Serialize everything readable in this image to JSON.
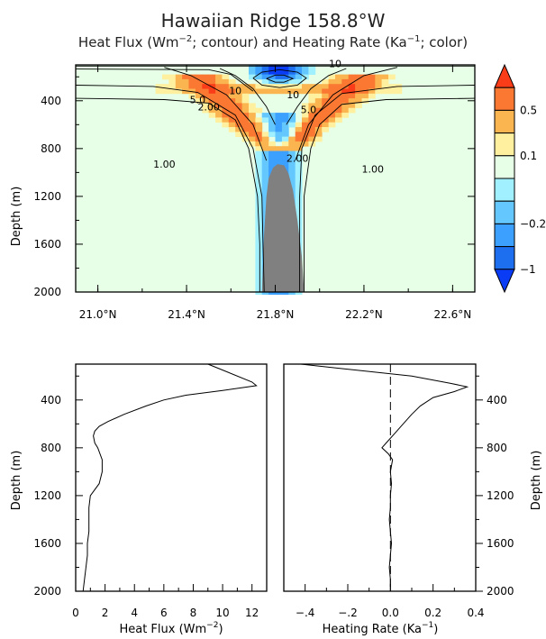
{
  "title": "Hawaiian Ridge 158.8°W",
  "subtitle": {
    "part1": "Heat Flux (Wm",
    "sup1": "−2",
    "part2": "; contour) and Heating Rate (Ka",
    "sup2": "−1",
    "part3": "; color)"
  },
  "chart_data": [
    {
      "type": "heatmap",
      "xlabel": "",
      "ylabel": "Depth (m)",
      "x_ticks": [
        "21.0°N",
        "21.4°N",
        "21.8°N",
        "22.2°N",
        "22.6°N"
      ],
      "x_tick_values": [
        21.0,
        21.4,
        21.8,
        22.2,
        22.6
      ],
      "xlim": [
        20.9,
        22.7
      ],
      "y_ticks": [
        "400",
        "800",
        "1200",
        "1600",
        "2000"
      ],
      "y_tick_values": [
        400,
        800,
        1200,
        1600,
        2000
      ],
      "ylim": [
        2000,
        100
      ],
      "y_reversed": true,
      "ridge_color": "#808080",
      "colorbar": {
        "labels": [
          "0.5",
          "0.1",
          "−0.2",
          "−1"
        ],
        "colors": [
          "#fa3c19",
          "#fa7832",
          "#fab450",
          "#fff0a0",
          "#e6ffe6",
          "#a0f0ff",
          "#64c8ff",
          "#3ca0ff",
          "#1e6ef0",
          "#0a3cf5"
        ]
      },
      "contour_labels": [
        "10",
        "10",
        "5.0",
        "2.00",
        "2.00",
        "1.00",
        "1.00",
        "5.0",
        "10"
      ],
      "background_color": "#e6ffe6"
    },
    {
      "type": "line",
      "xlabel_text": "Heat Flux (Wm",
      "xlabel_sup": "−2",
      "xlabel_end": ")",
      "ylabel": "Depth (m)",
      "x_ticks": [
        "0",
        "2",
        "4",
        "6",
        "8",
        "10",
        "12"
      ],
      "x_tick_values": [
        0,
        2,
        4,
        6,
        8,
        10,
        12
      ],
      "xlim": [
        0,
        13
      ],
      "y_ticks": [
        "400",
        "800",
        "1200",
        "1600",
        "2000"
      ],
      "y_tick_values": [
        400,
        800,
        1200,
        1600,
        2000
      ],
      "ylim": [
        2000,
        100
      ],
      "series": [
        {
          "depth": [
            100,
            250,
            280,
            320,
            360,
            400,
            450,
            520,
            580,
            620,
            660,
            700,
            760,
            800,
            900,
            1000,
            1100,
            1200,
            1300,
            1400,
            1500,
            1600,
            1700,
            1800,
            1900,
            2000
          ],
          "values": [
            9.0,
            12.0,
            12.3,
            10.0,
            7.5,
            6.0,
            4.8,
            3.3,
            2.2,
            1.6,
            1.3,
            1.2,
            1.3,
            1.5,
            1.8,
            1.8,
            1.6,
            1.0,
            0.9,
            0.9,
            0.9,
            0.8,
            0.8,
            0.7,
            0.6,
            0.5
          ]
        }
      ]
    },
    {
      "type": "line",
      "xlabel_text": "Heating Rate (Ka",
      "xlabel_sup": "−1",
      "xlabel_end": ")",
      "ylabel": "Depth (m)",
      "x_ticks": [
        "−.4",
        "−.2",
        "0.0",
        "0.2",
        "0.4"
      ],
      "x_tick_values": [
        -0.4,
        -0.2,
        0.0,
        0.2,
        0.4
      ],
      "xlim": [
        -0.5,
        0.4
      ],
      "y_ticks": [
        "400",
        "800",
        "1200",
        "1600",
        "2000"
      ],
      "y_tick_values": [
        400,
        800,
        1200,
        1600,
        2000
      ],
      "ylim": [
        2000,
        100
      ],
      "reference_line_x": 0.0,
      "series": [
        {
          "depth": [
            100,
            200,
            260,
            290,
            330,
            380,
            450,
            520,
            600,
            680,
            760,
            800,
            850,
            900,
            1000,
            1100,
            1200,
            1300,
            1400,
            1500,
            1600,
            1700,
            1800,
            1900,
            2000
          ],
          "values": [
            -0.42,
            0.1,
            0.28,
            0.36,
            0.3,
            0.2,
            0.14,
            0.1,
            0.06,
            0.02,
            -0.02,
            -0.04,
            -0.01,
            0.01,
            0.0,
            0.005,
            0.0,
            0.0,
            -0.005,
            0.0,
            0.005,
            0.0,
            -0.005,
            0.0,
            0.0
          ]
        }
      ]
    }
  ]
}
